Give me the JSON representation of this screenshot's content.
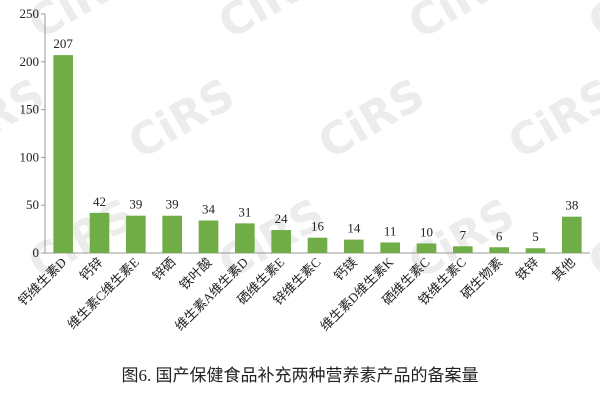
{
  "chart_data": {
    "type": "bar",
    "caption": "图6. 国产保健食品补充两种营养素产品的备案量",
    "watermark": "CiRS",
    "categories": [
      "钙维生素D",
      "钙锌",
      "维生素C维生素E",
      "锌硒",
      "铁叶酸",
      "维生素A维生素D",
      "硒维生素E",
      "锌维生素C",
      "钙镁",
      "维生素D维生素K",
      "硒维生素C",
      "铁维生素C",
      "硒生物素",
      "铁锌",
      "其他"
    ],
    "values": [
      207,
      42,
      39,
      39,
      34,
      31,
      24,
      16,
      14,
      11,
      10,
      7,
      6,
      5,
      38
    ],
    "color": "#70ad47",
    "ylim": [
      0,
      250
    ],
    "yticks": [
      0,
      50,
      100,
      150,
      200,
      250
    ],
    "grid": false
  }
}
